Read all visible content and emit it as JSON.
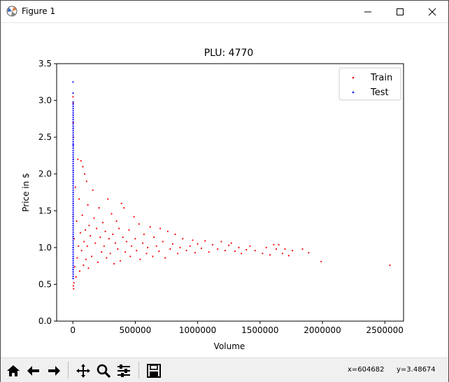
{
  "window": {
    "title": "Figure 1",
    "controls": {
      "minimize_icon": "minimize-icon",
      "maximize_icon": "maximize-icon",
      "close_icon": "close-icon"
    }
  },
  "toolbar": {
    "buttons": [
      "home-icon",
      "back-arrow-icon",
      "forward-arrow-icon",
      "pan-icon",
      "zoom-icon",
      "configure-subplots-icon",
      "save-icon"
    ],
    "coord_x": "x=604682",
    "coord_y": "y=3.48674"
  },
  "chart_data": {
    "type": "scatter",
    "title": "PLU: 4770",
    "xlabel": "Volume",
    "ylabel": "Price in $",
    "xlim": [
      -130000,
      2650000
    ],
    "ylim": [
      0.0,
      3.5
    ],
    "xticks": [
      0,
      500000,
      1000000,
      1500000,
      2000000,
      2500000
    ],
    "xtick_labels": [
      "0",
      "500000",
      "1000000",
      "1500000",
      "2000000",
      "2500000"
    ],
    "yticks": [
      0.0,
      0.5,
      1.0,
      1.5,
      2.0,
      2.5,
      3.0,
      3.5
    ],
    "ytick_labels": [
      "0.0",
      "0.5",
      "1.0",
      "1.5",
      "2.0",
      "2.5",
      "3.0",
      "3.5"
    ],
    "legend_position": "top-right",
    "grid": false,
    "series": [
      {
        "name": "Train",
        "color": "#ff0000",
        "points": [
          [
            2540000,
            0.76
          ],
          [
            1990000,
            0.81
          ],
          [
            1890000,
            0.93
          ],
          [
            1840000,
            0.98
          ],
          [
            1760000,
            0.96
          ],
          [
            1730000,
            0.89
          ],
          [
            1700000,
            0.98
          ],
          [
            1680000,
            0.92
          ],
          [
            1650000,
            1.04
          ],
          [
            1630000,
            0.98
          ],
          [
            1610000,
            1.04
          ],
          [
            1580000,
            0.9
          ],
          [
            1550000,
            1.0
          ],
          [
            1520000,
            0.92
          ],
          [
            1460000,
            0.96
          ],
          [
            1420000,
            1.02
          ],
          [
            1390000,
            0.97
          ],
          [
            1350000,
            0.92
          ],
          [
            1330000,
            1.0
          ],
          [
            1300000,
            0.95
          ],
          [
            1270000,
            1.06
          ],
          [
            1250000,
            1.03
          ],
          [
            1220000,
            0.96
          ],
          [
            1190000,
            1.08
          ],
          [
            1160000,
            0.98
          ],
          [
            1120000,
            1.04
          ],
          [
            1090000,
            0.94
          ],
          [
            1060000,
            1.09
          ],
          [
            1030000,
            0.99
          ],
          [
            1000000,
            1.05
          ],
          [
            980000,
            0.93
          ],
          [
            960000,
            1.1
          ],
          [
            940000,
            1.02
          ],
          [
            910000,
            0.96
          ],
          [
            880000,
            1.12
          ],
          [
            860000,
            1.0
          ],
          [
            840000,
            0.92
          ],
          [
            820000,
            1.18
          ],
          [
            800000,
            1.05
          ],
          [
            780000,
            0.98
          ],
          [
            760000,
            1.22
          ],
          [
            740000,
            0.86
          ],
          [
            720000,
            1.08
          ],
          [
            700000,
            1.26
          ],
          [
            690000,
            0.95
          ],
          [
            670000,
            1.02
          ],
          [
            650000,
            1.14
          ],
          [
            640000,
            0.88
          ],
          [
            620000,
            1.28
          ],
          [
            600000,
            1.0
          ],
          [
            590000,
            0.92
          ],
          [
            570000,
            1.18
          ],
          [
            560000,
            1.06
          ],
          [
            540000,
            0.84
          ],
          [
            530000,
            1.32
          ],
          [
            510000,
            0.96
          ],
          [
            500000,
            1.12
          ],
          [
            490000,
            1.42
          ],
          [
            470000,
            1.02
          ],
          [
            460000,
            0.88
          ],
          [
            450000,
            1.24
          ],
          [
            430000,
            1.08
          ],
          [
            420000,
            0.94
          ],
          [
            410000,
            1.54
          ],
          [
            400000,
            1.14
          ],
          [
            390000,
            1.6
          ],
          [
            380000,
            0.82
          ],
          [
            370000,
            1.26
          ],
          [
            360000,
            0.98
          ],
          [
            350000,
            1.36
          ],
          [
            340000,
            1.06
          ],
          [
            330000,
            0.78
          ],
          [
            320000,
            1.18
          ],
          [
            310000,
            1.46
          ],
          [
            300000,
            0.92
          ],
          [
            290000,
            1.12
          ],
          [
            280000,
            1.66
          ],
          [
            270000,
            0.86
          ],
          [
            260000,
            1.22
          ],
          [
            250000,
            1.02
          ],
          [
            240000,
            1.34
          ],
          [
            230000,
            0.94
          ],
          [
            220000,
            1.14
          ],
          [
            210000,
            1.54
          ],
          [
            200000,
            0.8
          ],
          [
            190000,
            1.26
          ],
          [
            180000,
            1.06
          ],
          [
            170000,
            1.4
          ],
          [
            160000,
            1.78
          ],
          [
            150000,
            0.88
          ],
          [
            140000,
            1.16
          ],
          [
            130000,
            1.3
          ],
          [
            125000,
            0.72
          ],
          [
            120000,
            1.58
          ],
          [
            115000,
            1.02
          ],
          [
            110000,
            1.9
          ],
          [
            105000,
            0.84
          ],
          [
            100000,
            1.24
          ],
          [
            95000,
            2.0
          ],
          [
            90000,
            1.08
          ],
          [
            85000,
            0.76
          ],
          [
            80000,
            2.1
          ],
          [
            75000,
            1.44
          ],
          [
            70000,
            0.96
          ],
          [
            65000,
            2.18
          ],
          [
            60000,
            1.2
          ],
          [
            55000,
            0.68
          ],
          [
            50000,
            1.66
          ],
          [
            45000,
            1.02
          ],
          [
            40000,
            2.2
          ],
          [
            35000,
            0.86
          ],
          [
            30000,
            1.36
          ],
          [
            25000,
            0.6
          ],
          [
            20000,
            1.82
          ],
          [
            15000,
            0.74
          ],
          [
            10000,
            1.12
          ],
          [
            8000,
            0.52
          ],
          [
            6000,
            0.44
          ],
          [
            4000,
            0.48
          ],
          [
            2000,
            2.96
          ],
          [
            1000,
            3.05
          ],
          [
            3000,
            2.7
          ],
          [
            5000,
            2.5
          ],
          [
            1000,
            1.42
          ]
        ]
      },
      {
        "name": "Test",
        "color": "#0000ff",
        "points": [
          [
            1000,
            3.25
          ],
          [
            1500,
            3.1
          ],
          [
            2000,
            2.95
          ],
          [
            2500,
            2.8
          ],
          [
            3000,
            2.62
          ],
          [
            3000,
            2.4
          ],
          [
            3500,
            2.2
          ],
          [
            3500,
            2.05
          ],
          [
            3000,
            1.9
          ],
          [
            2500,
            1.75
          ],
          [
            2000,
            1.6
          ],
          [
            2000,
            1.45
          ],
          [
            2500,
            1.3
          ],
          [
            2500,
            1.15
          ],
          [
            2000,
            1.0
          ],
          [
            2000,
            0.85
          ],
          [
            1500,
            0.7
          ],
          [
            1500,
            0.58
          ]
        ]
      }
    ]
  }
}
